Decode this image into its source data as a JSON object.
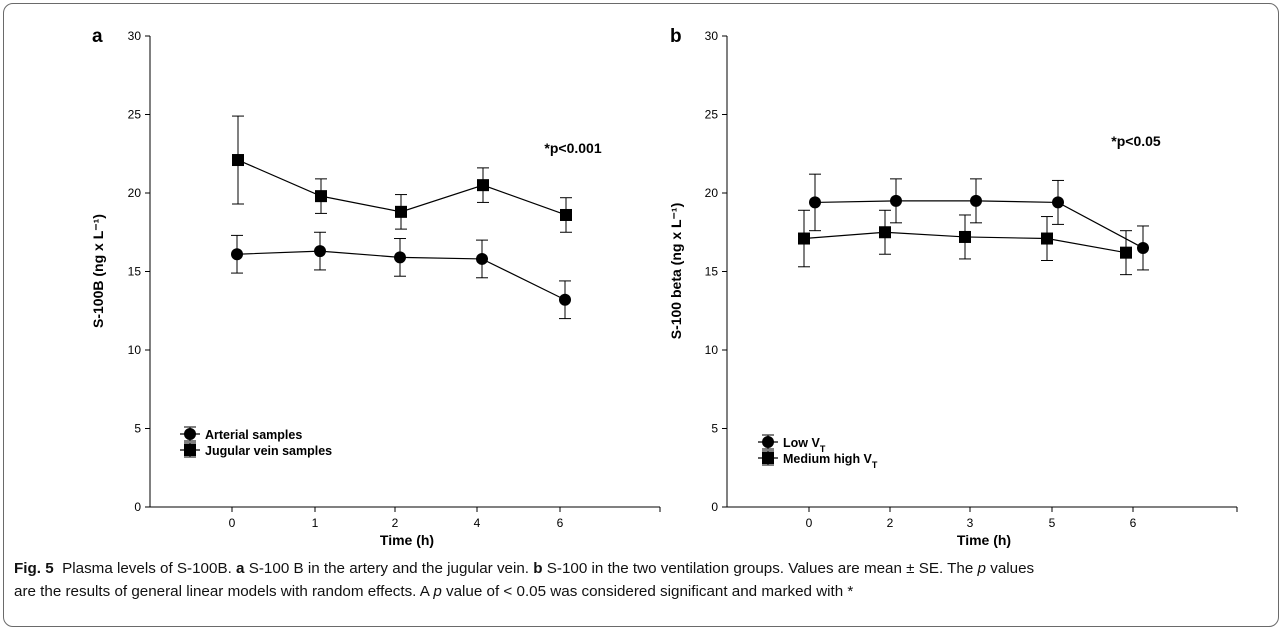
{
  "chart_data": [
    {
      "type": "line",
      "panel": "a",
      "xlabel": "Time (h)",
      "ylabel": "S-100B (ng x L⁻¹)",
      "x_ticks": [
        "0",
        "1",
        "2",
        "4",
        "6"
      ],
      "ylim": [
        0,
        30
      ],
      "y_ticks": [
        "0",
        "5",
        "10",
        "15",
        "20",
        "25",
        "30"
      ],
      "annotation": "*p<0.001",
      "grid": false,
      "legend_position": "bottom-left",
      "series": [
        {
          "name": "Arterial samples",
          "marker": "circle",
          "values": [
            16.1,
            16.3,
            15.9,
            15.8,
            13.2
          ],
          "error": [
            1.2,
            1.2,
            1.2,
            1.2,
            1.2
          ]
        },
        {
          "name": "Jugular vein samples",
          "marker": "square",
          "values": [
            22.1,
            19.8,
            18.8,
            20.5,
            18.6
          ],
          "error": [
            2.8,
            1.1,
            1.1,
            1.1,
            1.1
          ]
        }
      ]
    },
    {
      "type": "line",
      "panel": "b",
      "xlabel": "Time (h)",
      "ylabel": "S-100 beta (ng x L⁻¹)",
      "x_ticks": [
        "0",
        "2",
        "3",
        "5",
        "6"
      ],
      "ylim": [
        0,
        30
      ],
      "y_ticks": [
        "0",
        "5",
        "10",
        "15",
        "20",
        "25",
        "30"
      ],
      "annotation": "*p<0.05",
      "grid": false,
      "legend_position": "bottom-left",
      "series": [
        {
          "name": "Low V",
          "name_subscript": "T",
          "marker": "circle",
          "values": [
            19.4,
            19.5,
            19.5,
            19.4,
            16.5
          ],
          "error": [
            1.8,
            1.4,
            1.4,
            1.4,
            1.4
          ]
        },
        {
          "name": "Medium high V",
          "name_subscript": "T",
          "marker": "square",
          "values": [
            17.1,
            17.5,
            17.2,
            17.1,
            16.2
          ],
          "error": [
            1.8,
            1.4,
            1.4,
            1.4,
            1.4
          ]
        }
      ]
    }
  ],
  "caption": {
    "label": "Fig. 5",
    "text1": "Plasma levels of S-100B.",
    "a": "a",
    "text2": "S-100 B in the artery and the jugular vein.",
    "b": "b",
    "text3": "S-100 in the two ventilation groups. Values are mean ± SE. The",
    "p1": "p",
    "text4": "values",
    "text5": "are the results of general linear models with random effects. A",
    "p2": "p",
    "text6": "value of < 0.05 was considered significant and marked with *"
  }
}
